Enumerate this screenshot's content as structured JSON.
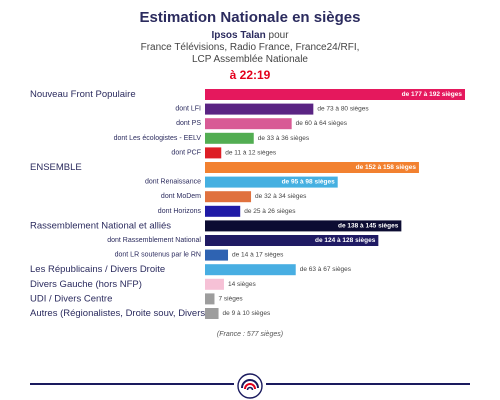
{
  "header": {
    "title": "Estimation Nationale en sièges",
    "pollster_name": "Ipsos Talan",
    "pollster_suffix": " pour",
    "sponsors_line1": "France Télévisions, Radio France, France24/RFI,",
    "sponsors_line2": "LCP Assemblée Nationale",
    "time": "à 22:19"
  },
  "chart_data": {
    "type": "bar",
    "orientation": "horizontal",
    "title": "Estimation Nationale en sièges",
    "unit": "sièges",
    "xlim": [
      0,
      192
    ],
    "rows": [
      {
        "label": "Nouveau Front Populaire",
        "level": "main",
        "min": 177,
        "max": 192,
        "value_label": "de 177 à 192 sièges",
        "color": "#e5185d"
      },
      {
        "label": "dont LFI",
        "level": "sub",
        "min": 73,
        "max": 80,
        "value_label": "de 73 à 80 sièges",
        "color": "#5a2483"
      },
      {
        "label": "dont PS",
        "level": "sub",
        "min": 60,
        "max": 64,
        "value_label": "de 60 à 64 sièges",
        "color": "#d85a95"
      },
      {
        "label": "dont Les écologistes - EELV",
        "level": "sub",
        "min": 33,
        "max": 36,
        "value_label": "de 33 à 36 sièges",
        "color": "#52ad52"
      },
      {
        "label": "dont PCF",
        "level": "sub",
        "min": 11,
        "max": 12,
        "value_label": "de 11 à 12 sièges",
        "color": "#dd1e25"
      },
      {
        "label": "ENSEMBLE",
        "level": "main",
        "min": 152,
        "max": 158,
        "value_label": "de 152 à 158 sièges",
        "color": "#f28130"
      },
      {
        "label": "dont Renaissance",
        "level": "sub",
        "min": 95,
        "max": 98,
        "value_label": "de 95 à 98 sièges",
        "color": "#45b0e1"
      },
      {
        "label": "dont MoDem",
        "level": "sub",
        "min": 32,
        "max": 34,
        "value_label": "de 32 à 34 sièges",
        "color": "#e0713e"
      },
      {
        "label": "dont Horizons",
        "level": "sub",
        "min": 25,
        "max": 26,
        "value_label": "de 25 à 26 sièges",
        "color": "#1f1aa6"
      },
      {
        "label": "Rassemblement National et alliés",
        "level": "main",
        "min": 138,
        "max": 145,
        "value_label": "de 138 à 145 sièges",
        "color": "#0c0c32"
      },
      {
        "label": "dont Rassemblement National",
        "level": "sub",
        "min": 124,
        "max": 128,
        "value_label": "de 124 à 128 sièges",
        "color": "#1f1a63"
      },
      {
        "label": "dont LR soutenus par le RN",
        "level": "sub",
        "min": 14,
        "max": 17,
        "value_label": "de 14 à 17 sièges",
        "color": "#2e63b2"
      },
      {
        "label": "Les Républicains / Divers Droite",
        "level": "main",
        "min": 63,
        "max": 67,
        "value_label": "de 63 à 67 sièges",
        "color": "#48aee2"
      },
      {
        "label": "Divers Gauche (hors NFP)",
        "level": "main",
        "min": 14,
        "max": 14,
        "value_label": "14 sièges",
        "color": "#f6c1d6"
      },
      {
        "label": "UDI / Divers Centre",
        "level": "main",
        "min": 7,
        "max": 7,
        "value_label": "7 sièges",
        "color": "#9d9d9d"
      },
      {
        "label": "Autres (Régionalistes, Droite souv, Divers)",
        "level": "main",
        "min": 9,
        "max": 10,
        "value_label": "de 9 à 10 sièges",
        "color": "#9d9d9d"
      }
    ]
  },
  "footnote": "(France : 577 sièges)",
  "logo_icon": "ipsos-rosette-icon",
  "footer_line_color": "#1a1a5e"
}
